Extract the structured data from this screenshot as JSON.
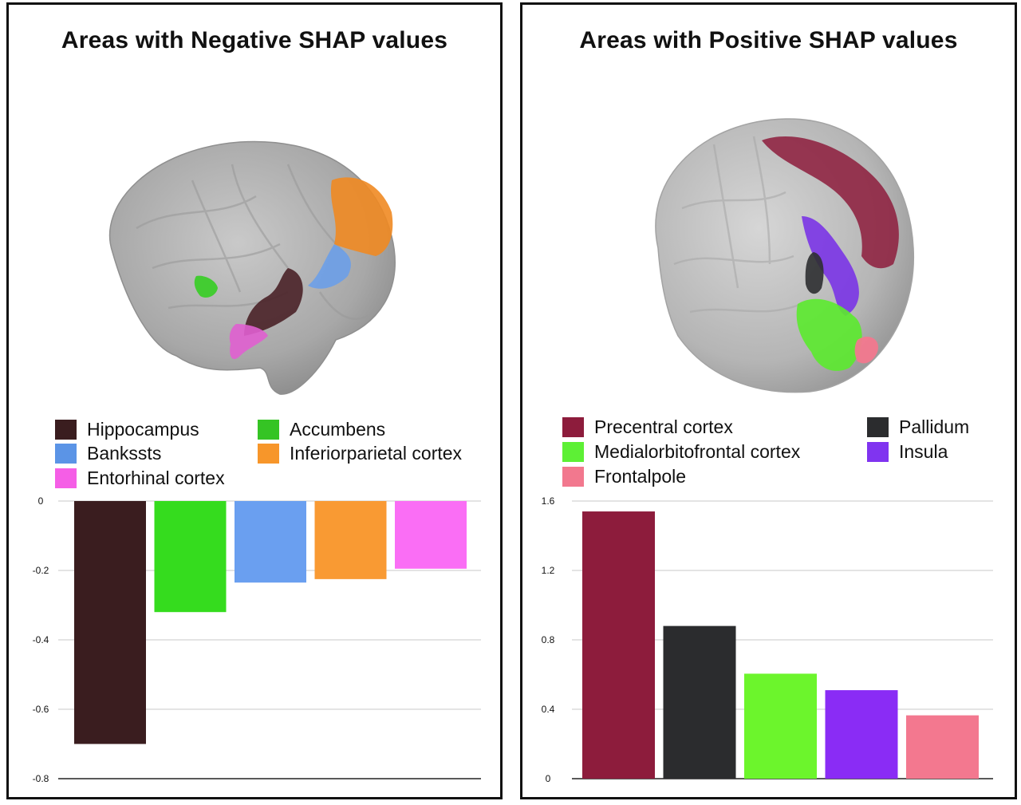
{
  "panels": [
    {
      "title": "Areas with Negative SHAP values",
      "legend": [
        {
          "label": "Hippocampus",
          "color": "#3a1d1f"
        },
        {
          "label": "Accumbens",
          "color": "#35c424"
        },
        {
          "label": "Bankssts",
          "color": "#5b94e6"
        },
        {
          "label": "Inferiorparietal cortex",
          "color": "#f7962a"
        },
        {
          "label": "Entorhinal cortex",
          "color": "#f55ee6"
        }
      ]
    },
    {
      "title": "Areas with Positive SHAP values",
      "legend": [
        {
          "label": "Precentral cortex",
          "color": "#8d1c3c"
        },
        {
          "label": "Pallidum",
          "color": "#2b2c2e"
        },
        {
          "label": "Medialorbitofrontal cortex",
          "color": "#5df035"
        },
        {
          "label": "Insula",
          "color": "#8034f0"
        },
        {
          "label": "Frontalpole",
          "color": "#f2788e"
        }
      ]
    }
  ],
  "chart_data": [
    {
      "type": "bar",
      "categories": [
        "Hippocampus",
        "Accumbens",
        "Bankssts",
        "Inferiorparietal cortex",
        "Entorhinal cortex"
      ],
      "values": [
        -0.7,
        -0.32,
        -0.235,
        -0.225,
        -0.195
      ],
      "colors": [
        "#3a1d1f",
        "#35dc1e",
        "#6a9ff0",
        "#f99a33",
        "#fa6ef5"
      ],
      "ylim": [
        -0.8,
        0
      ],
      "yticks": [
        0,
        -0.2,
        -0.4,
        -0.6,
        -0.8
      ],
      "ytick_labels": [
        "0",
        "-0.2",
        "-0.4",
        "-0.6",
        "-0.8"
      ],
      "grid": true,
      "legend_position": "top"
    },
    {
      "type": "bar",
      "categories": [
        "Precentral cortex",
        "Pallidum",
        "Medialorbitofrontal cortex",
        "Insula",
        "Frontalpole"
      ],
      "values": [
        1.54,
        0.88,
        0.605,
        0.51,
        0.365
      ],
      "colors": [
        "#8d1c3c",
        "#2b2c2e",
        "#6cf52c",
        "#8a2cf5",
        "#f3788f"
      ],
      "ylim": [
        0,
        1.6
      ],
      "yticks": [
        1.6,
        1.2,
        0.8,
        0.4,
        0
      ],
      "ytick_labels": [
        "1.6",
        "1.2",
        "0.8",
        "0.4",
        "0"
      ],
      "grid": true,
      "legend_position": "top"
    }
  ]
}
